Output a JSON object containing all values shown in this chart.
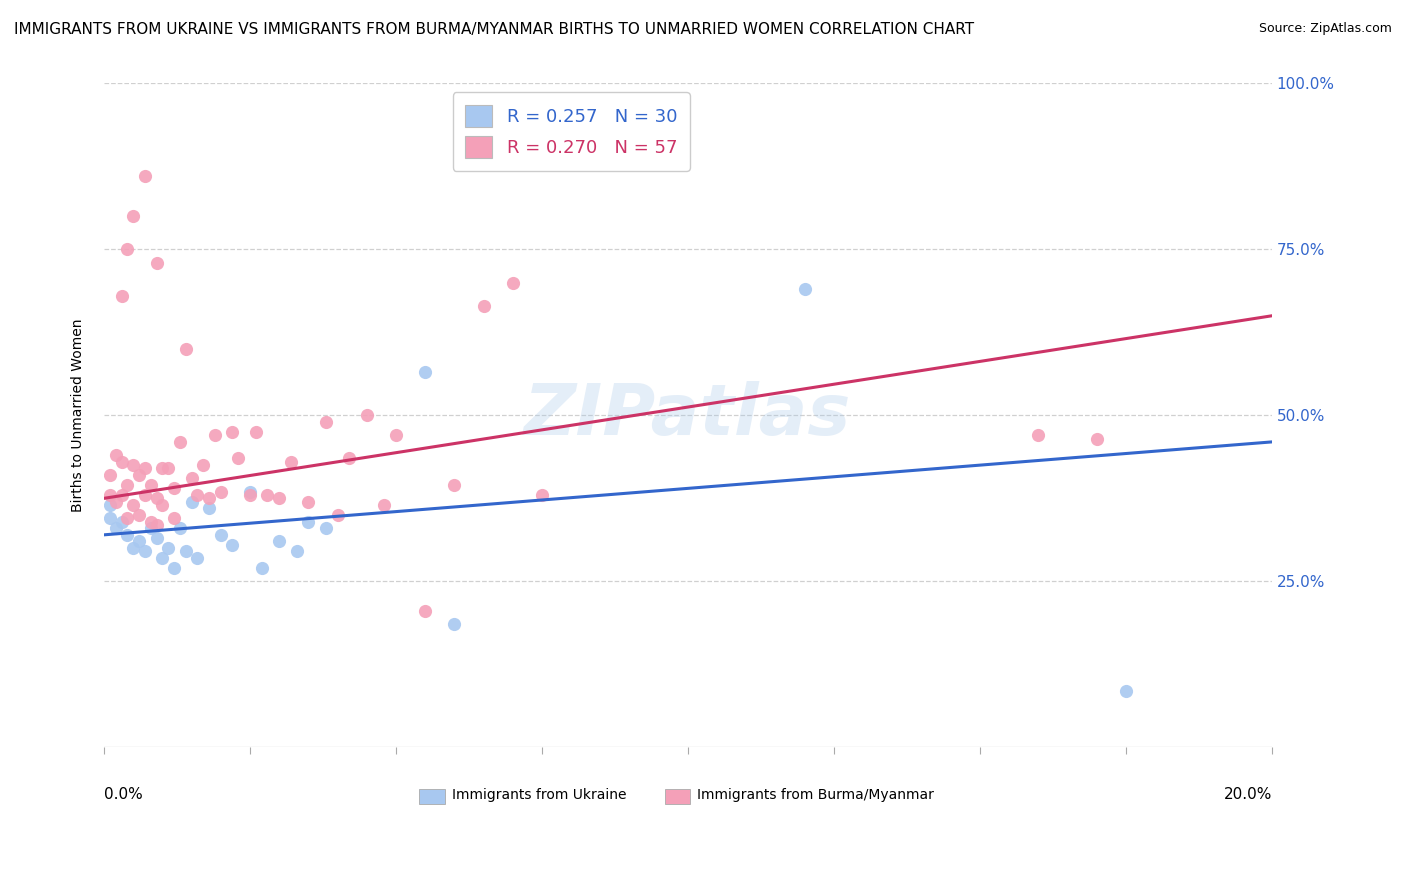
{
  "title": "IMMIGRANTS FROM UKRAINE VS IMMIGRANTS FROM BURMA/MYANMAR BIRTHS TO UNMARRIED WOMEN CORRELATION CHART",
  "source": "Source: ZipAtlas.com",
  "ylabel": "Births to Unmarried Women",
  "watermark": "ZIPatlas",
  "legend_ukraine": "R = 0.257   N = 30",
  "legend_burma": "R = 0.270   N = 57",
  "legend_label_ukraine": "Immigrants from Ukraine",
  "legend_label_burma": "Immigrants from Burma/Myanmar",
  "ukraine_color": "#a8c8f0",
  "burma_color": "#f4a0b8",
  "ukraine_line_color": "#3366cc",
  "burma_line_color": "#cc3366",
  "background_color": "#ffffff",
  "xlim": [
    0.0,
    0.2
  ],
  "ylim": [
    0.0,
    1.0
  ],
  "right_ytick_labels": [
    "100.0%",
    "75.0%",
    "50.0%",
    "25.0%"
  ],
  "right_ytick_vals": [
    1.0,
    0.75,
    0.5,
    0.25
  ],
  "ukraine_scatter_x": [
    0.001,
    0.001,
    0.002,
    0.003,
    0.004,
    0.005,
    0.006,
    0.007,
    0.008,
    0.009,
    0.01,
    0.011,
    0.012,
    0.013,
    0.014,
    0.015,
    0.016,
    0.018,
    0.02,
    0.022,
    0.025,
    0.027,
    0.03,
    0.033,
    0.035,
    0.038,
    0.055,
    0.06,
    0.12,
    0.175
  ],
  "ukraine_scatter_y": [
    0.365,
    0.345,
    0.33,
    0.34,
    0.32,
    0.3,
    0.31,
    0.295,
    0.33,
    0.315,
    0.285,
    0.3,
    0.27,
    0.33,
    0.295,
    0.37,
    0.285,
    0.36,
    0.32,
    0.305,
    0.385,
    0.27,
    0.31,
    0.295,
    0.34,
    0.33,
    0.565,
    0.185,
    0.69,
    0.085
  ],
  "burma_scatter_x": [
    0.001,
    0.001,
    0.002,
    0.002,
    0.003,
    0.003,
    0.004,
    0.004,
    0.005,
    0.005,
    0.006,
    0.006,
    0.007,
    0.007,
    0.008,
    0.008,
    0.009,
    0.009,
    0.01,
    0.01,
    0.011,
    0.012,
    0.012,
    0.013,
    0.014,
    0.015,
    0.016,
    0.017,
    0.018,
    0.019,
    0.02,
    0.022,
    0.023,
    0.025,
    0.026,
    0.028,
    0.03,
    0.032,
    0.035,
    0.038,
    0.04,
    0.042,
    0.045,
    0.048,
    0.05,
    0.055,
    0.06,
    0.065,
    0.07,
    0.075,
    0.003,
    0.004,
    0.005,
    0.007,
    0.009,
    0.16,
    0.17
  ],
  "burma_scatter_y": [
    0.41,
    0.38,
    0.44,
    0.37,
    0.43,
    0.38,
    0.395,
    0.345,
    0.425,
    0.365,
    0.41,
    0.35,
    0.42,
    0.38,
    0.395,
    0.34,
    0.375,
    0.335,
    0.42,
    0.365,
    0.42,
    0.39,
    0.345,
    0.46,
    0.6,
    0.405,
    0.38,
    0.425,
    0.375,
    0.47,
    0.385,
    0.475,
    0.435,
    0.38,
    0.475,
    0.38,
    0.375,
    0.43,
    0.37,
    0.49,
    0.35,
    0.435,
    0.5,
    0.365,
    0.47,
    0.205,
    0.395,
    0.665,
    0.7,
    0.38,
    0.68,
    0.75,
    0.8,
    0.86,
    0.73,
    0.47,
    0.465
  ],
  "ukraine_trend_x": [
    0.0,
    0.2
  ],
  "ukraine_trend_y": [
    0.32,
    0.46
  ],
  "burma_trend_x": [
    0.0,
    0.2
  ],
  "burma_trend_y": [
    0.375,
    0.65
  ],
  "grid_color": "#d0d0d0",
  "title_fontsize": 11,
  "tick_label_fontsize": 11
}
